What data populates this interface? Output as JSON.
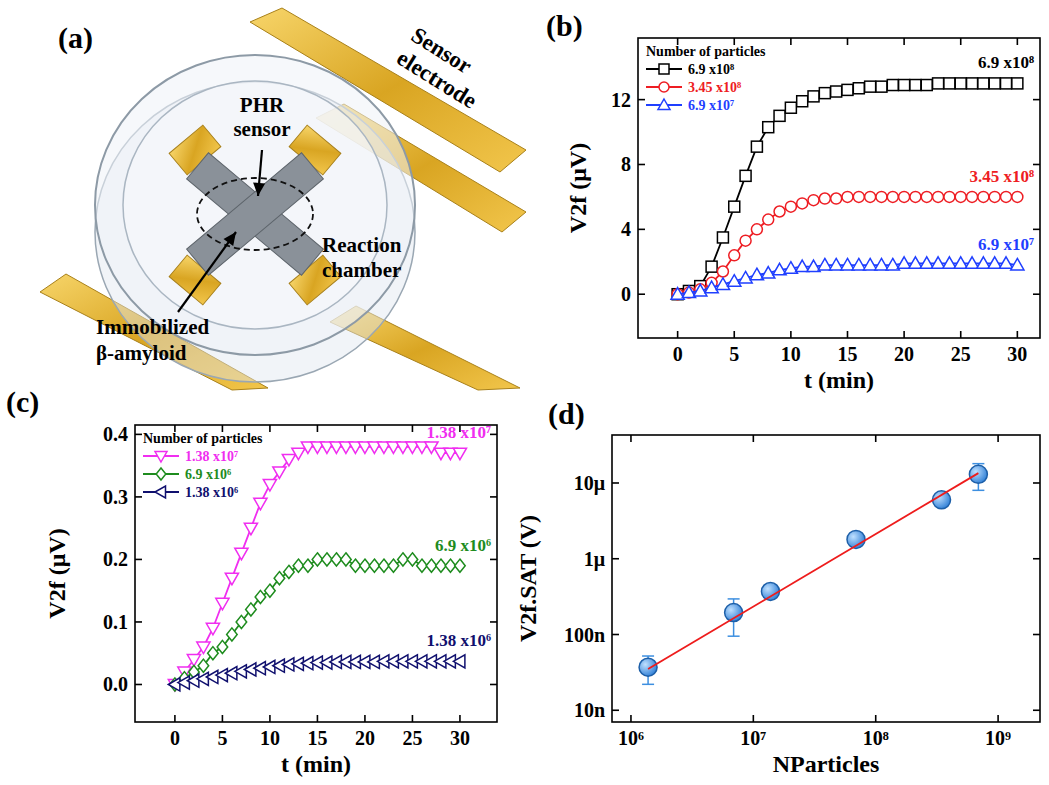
{
  "diagram": {
    "label": "(a)",
    "sensor_electrode": "Sensor electrode",
    "phr_sensor": "PHR sensor",
    "reaction_chamber": "Reaction chamber",
    "immobilized": "Immobilized β-amyloid"
  },
  "chart_data": [
    {
      "type": "line",
      "title": "(b)",
      "x_label": "t (min)",
      "y_label": "V2f (μV)",
      "legend_title": "Number of particles",
      "legend": "upper left",
      "x": [
        0,
        1,
        2,
        3,
        4,
        5,
        6,
        7,
        8,
        9,
        10,
        11,
        12,
        13,
        14,
        15,
        16,
        17,
        18,
        19,
        20,
        21,
        22,
        23,
        24,
        25,
        26,
        27,
        28,
        29,
        30
      ],
      "xlim": [
        -3.5,
        32
      ],
      "ylim": [
        -2.7,
        15.8
      ],
      "xticks": [
        0,
        5,
        10,
        15,
        20,
        25,
        30
      ],
      "yticks": [
        0,
        4,
        8,
        12
      ],
      "series": [
        {
          "name": "6.9 x10⁸",
          "color": "#000000",
          "marker": "square",
          "line_style": "solid",
          "values": [
            0,
            0.2,
            0.5,
            1.7,
            3.5,
            5.4,
            7.3,
            9.1,
            10.3,
            11.0,
            11.5,
            11.9,
            12.2,
            12.4,
            12.5,
            12.6,
            12.7,
            12.8,
            12.8,
            12.9,
            12.9,
            12.9,
            12.9,
            13.0,
            13.0,
            13.0,
            13.0,
            13.0,
            13.0,
            13.0,
            13.0
          ]
        },
        {
          "name": "3.45 x10⁸",
          "color": "#ee1d23",
          "marker": "circle",
          "line_style": "solid",
          "values": [
            0,
            0.1,
            0.3,
            0.7,
            1.4,
            2.4,
            3.3,
            4.0,
            4.6,
            5.1,
            5.4,
            5.6,
            5.8,
            5.9,
            5.9,
            6.0,
            6.0,
            6.0,
            6.0,
            6.0,
            6.0,
            6.0,
            6.0,
            6.0,
            6.0,
            6.0,
            6.0,
            6.0,
            6.0,
            6.0,
            6.0
          ]
        },
        {
          "name": "6.9 x10⁷",
          "color": "#1f3fff",
          "marker": "triangle-up",
          "line_style": "solid",
          "values": [
            0,
            0.1,
            0.2,
            0.4,
            0.6,
            0.8,
            1.0,
            1.2,
            1.3,
            1.5,
            1.6,
            1.7,
            1.7,
            1.8,
            1.8,
            1.8,
            1.8,
            1.8,
            1.8,
            1.8,
            1.9,
            1.9,
            1.9,
            1.9,
            1.9,
            1.9,
            1.9,
            1.9,
            1.9,
            1.9,
            1.8
          ]
        }
      ]
    },
    {
      "type": "line",
      "title": "(c)",
      "x_label": "t (min)",
      "y_label": "V2f (μV)",
      "legend_title": "Number of particles",
      "legend": "upper left",
      "x": [
        0,
        1,
        2,
        3,
        4,
        5,
        6,
        7,
        8,
        9,
        10,
        11,
        12,
        13,
        14,
        15,
        16,
        17,
        18,
        19,
        20,
        21,
        22,
        23,
        24,
        25,
        26,
        27,
        28,
        29,
        30
      ],
      "xlim": [
        -4.2,
        33.9
      ],
      "ylim": [
        -0.06,
        0.415
      ],
      "xticks": [
        0,
        5,
        10,
        15,
        20,
        25,
        30
      ],
      "yticks": [
        {
          "value": 0,
          "label": "0.0"
        },
        {
          "value": 0.1,
          "label": "0.1"
        },
        {
          "value": 0.2,
          "label": "0.2"
        },
        {
          "value": 0.3,
          "label": "0.3"
        },
        {
          "value": 0.4,
          "label": "0.4"
        }
      ],
      "series": [
        {
          "name": "1.38 x10⁷",
          "color": "#f02ef0",
          "marker": "triangle-down",
          "line_style": "solid",
          "values": [
            0,
            0.02,
            0.04,
            0.06,
            0.09,
            0.13,
            0.17,
            0.21,
            0.25,
            0.29,
            0.32,
            0.34,
            0.36,
            0.37,
            0.38,
            0.38,
            0.38,
            0.38,
            0.38,
            0.38,
            0.38,
            0.38,
            0.38,
            0.38,
            0.38,
            0.38,
            0.38,
            0.38,
            0.37,
            0.37,
            0.37
          ]
        },
        {
          "name": "6.9 x10⁶",
          "color": "#1e8c1e",
          "marker": "diamond",
          "line_style": "solid",
          "values": [
            0,
            0.01,
            0.02,
            0.03,
            0.05,
            0.06,
            0.08,
            0.1,
            0.12,
            0.14,
            0.15,
            0.17,
            0.18,
            0.19,
            0.19,
            0.2,
            0.2,
            0.2,
            0.2,
            0.19,
            0.19,
            0.19,
            0.19,
            0.19,
            0.2,
            0.2,
            0.19,
            0.19,
            0.19,
            0.19,
            0.19
          ]
        },
        {
          "name": "1.38 x10⁶",
          "color": "#10106e",
          "marker": "triangle-left",
          "line_style": "solid",
          "values": [
            0,
            0.003,
            0.006,
            0.009,
            0.012,
            0.015,
            0.018,
            0.021,
            0.024,
            0.026,
            0.028,
            0.03,
            0.032,
            0.033,
            0.034,
            0.035,
            0.035,
            0.036,
            0.036,
            0.036,
            0.036,
            0.036,
            0.037,
            0.037,
            0.037,
            0.037,
            0.037,
            0.037,
            0.037,
            0.037,
            0.037
          ]
        }
      ]
    },
    {
      "type": "scatter",
      "title": "(d)",
      "x_label": "NParticles",
      "y_label": "V2f.SAT (V)",
      "log": true,
      "x": [
        1380000,
        6900000,
        13800000,
        69000000,
        345000000,
        690000000
      ],
      "xlim": [
        700000,
        2200000000
      ],
      "ylim": [
        7e-09,
        4.3e-05
      ],
      "xticks": [
        {
          "value": 1000000,
          "label": "10⁶"
        },
        {
          "value": 10000000,
          "label": "10⁷"
        },
        {
          "value": 100000000,
          "label": "10⁸"
        },
        {
          "value": 1000000000,
          "label": "10⁹"
        }
      ],
      "yticks": [
        {
          "value": 1e-08,
          "label": "10n"
        },
        {
          "value": 1e-07,
          "label": "100n"
        },
        {
          "value": 1e-06,
          "label": "1μ"
        },
        {
          "value": 1e-05,
          "label": "10μ"
        }
      ],
      "series": [
        {
          "type": "scatter",
          "color": "#3d8fe0",
          "marker": "circle",
          "values": [
            3.7e-08,
            1.95e-07,
            3.7e-07,
            1.8e-06,
            6e-06,
            1.3e-05
          ],
          "errors": [
            1.5e-08,
            1e-07,
            4e-08,
            1.5e-07,
            4e-07,
            5e-06
          ]
        },
        {
          "type": "line",
          "color": "#ee1c1c",
          "line_style": "solid",
          "x": [
            1380000,
            690000000
          ],
          "values": [
            3.5e-08,
            1.35e-05
          ]
        }
      ]
    }
  ]
}
